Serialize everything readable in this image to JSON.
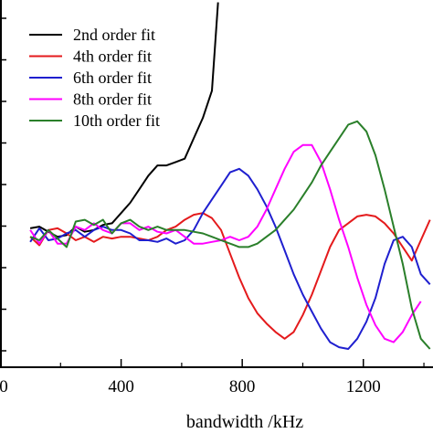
{
  "chart_data": {
    "type": "line",
    "title": "",
    "xlabel": "bandwidth /kHz",
    "ylabel": "",
    "xlim": [
      0,
      1430
    ],
    "ylim": [
      0,
      1
    ],
    "grid": false,
    "legend_position": "top-left",
    "x_ticks": [
      0,
      400,
      800,
      1200
    ],
    "x_tick_labels": [
      "0",
      "400",
      "800",
      "1200"
    ],
    "series": [
      {
        "name": "2nd order fit",
        "color": "#000000",
        "x": [
          100,
          130,
          160,
          190,
          220,
          250,
          280,
          310,
          340,
          370,
          400,
          430,
          460,
          490,
          520,
          550,
          580,
          610,
          640,
          670,
          700,
          720
        ],
        "y": [
          0.355,
          0.36,
          0.345,
          0.33,
          0.335,
          0.36,
          0.345,
          0.35,
          0.365,
          0.37,
          0.4,
          0.43,
          0.47,
          0.51,
          0.54,
          0.54,
          0.55,
          0.56,
          0.62,
          0.68,
          0.76,
          1.02
        ]
      },
      {
        "name": "4th order fit",
        "color": "#e41a1c",
        "x": [
          100,
          130,
          160,
          190,
          220,
          250,
          280,
          310,
          340,
          370,
          400,
          430,
          460,
          490,
          520,
          550,
          580,
          610,
          640,
          670,
          700,
          730,
          760,
          790,
          820,
          850,
          880,
          910,
          940,
          970,
          1000,
          1030,
          1060,
          1090,
          1120,
          1150,
          1180,
          1210,
          1240,
          1270,
          1300,
          1330,
          1360,
          1390,
          1420
        ],
        "y": [
          0.33,
          0.305,
          0.35,
          0.355,
          0.34,
          0.32,
          0.33,
          0.315,
          0.33,
          0.325,
          0.33,
          0.33,
          0.325,
          0.32,
          0.33,
          0.35,
          0.36,
          0.38,
          0.395,
          0.4,
          0.385,
          0.35,
          0.28,
          0.21,
          0.15,
          0.105,
          0.075,
          0.05,
          0.03,
          0.05,
          0.1,
          0.16,
          0.23,
          0.3,
          0.35,
          0.37,
          0.39,
          0.395,
          0.39,
          0.37,
          0.34,
          0.3,
          0.26,
          0.32,
          0.38
        ]
      },
      {
        "name": "6th order fit",
        "color": "#1f1fcf",
        "x": [
          100,
          130,
          160,
          190,
          220,
          250,
          280,
          310,
          340,
          370,
          400,
          430,
          460,
          490,
          520,
          550,
          580,
          610,
          640,
          670,
          700,
          730,
          760,
          790,
          820,
          850,
          880,
          910,
          940,
          970,
          1000,
          1030,
          1060,
          1090,
          1120,
          1150,
          1180,
          1210,
          1240,
          1270,
          1300,
          1330,
          1360,
          1390,
          1420
        ],
        "y": [
          0.315,
          0.355,
          0.32,
          0.325,
          0.34,
          0.35,
          0.33,
          0.35,
          0.36,
          0.35,
          0.35,
          0.34,
          0.32,
          0.32,
          0.315,
          0.325,
          0.31,
          0.32,
          0.35,
          0.4,
          0.44,
          0.48,
          0.52,
          0.53,
          0.51,
          0.47,
          0.42,
          0.36,
          0.29,
          0.22,
          0.16,
          0.11,
          0.06,
          0.02,
          0.005,
          0.0,
          0.03,
          0.08,
          0.15,
          0.25,
          0.32,
          0.33,
          0.3,
          0.22,
          0.19
        ]
      },
      {
        "name": "8th order fit",
        "color": "#ff00ff",
        "x": [
          100,
          130,
          160,
          190,
          220,
          250,
          280,
          310,
          340,
          370,
          400,
          430,
          460,
          490,
          520,
          550,
          580,
          610,
          640,
          670,
          700,
          730,
          760,
          790,
          820,
          850,
          880,
          910,
          940,
          970,
          1000,
          1030,
          1060,
          1090,
          1120,
          1150,
          1180,
          1210,
          1240,
          1270,
          1300,
          1330,
          1360,
          1390
        ],
        "y": [
          0.35,
          0.31,
          0.35,
          0.31,
          0.31,
          0.36,
          0.35,
          0.37,
          0.35,
          0.34,
          0.37,
          0.37,
          0.35,
          0.36,
          0.345,
          0.34,
          0.35,
          0.33,
          0.31,
          0.31,
          0.315,
          0.32,
          0.33,
          0.32,
          0.33,
          0.36,
          0.41,
          0.47,
          0.53,
          0.58,
          0.6,
          0.6,
          0.55,
          0.47,
          0.38,
          0.3,
          0.21,
          0.13,
          0.07,
          0.03,
          0.02,
          0.05,
          0.1,
          0.14
        ]
      },
      {
        "name": "10th order fit",
        "color": "#2a7f2a",
        "x": [
          100,
          130,
          160,
          190,
          220,
          250,
          280,
          310,
          340,
          370,
          400,
          430,
          460,
          490,
          520,
          550,
          580,
          610,
          640,
          670,
          700,
          730,
          760,
          790,
          820,
          850,
          880,
          910,
          940,
          970,
          1000,
          1030,
          1060,
          1090,
          1120,
          1150,
          1180,
          1210,
          1240,
          1270,
          1300,
          1330,
          1360,
          1390,
          1420
        ],
        "y": [
          0.33,
          0.32,
          0.35,
          0.325,
          0.3,
          0.375,
          0.38,
          0.365,
          0.38,
          0.34,
          0.37,
          0.38,
          0.36,
          0.35,
          0.36,
          0.35,
          0.35,
          0.35,
          0.345,
          0.34,
          0.33,
          0.32,
          0.31,
          0.3,
          0.3,
          0.31,
          0.33,
          0.35,
          0.38,
          0.41,
          0.45,
          0.49,
          0.54,
          0.58,
          0.62,
          0.66,
          0.67,
          0.64,
          0.57,
          0.47,
          0.36,
          0.25,
          0.12,
          0.03,
          0.0
        ]
      }
    ]
  }
}
